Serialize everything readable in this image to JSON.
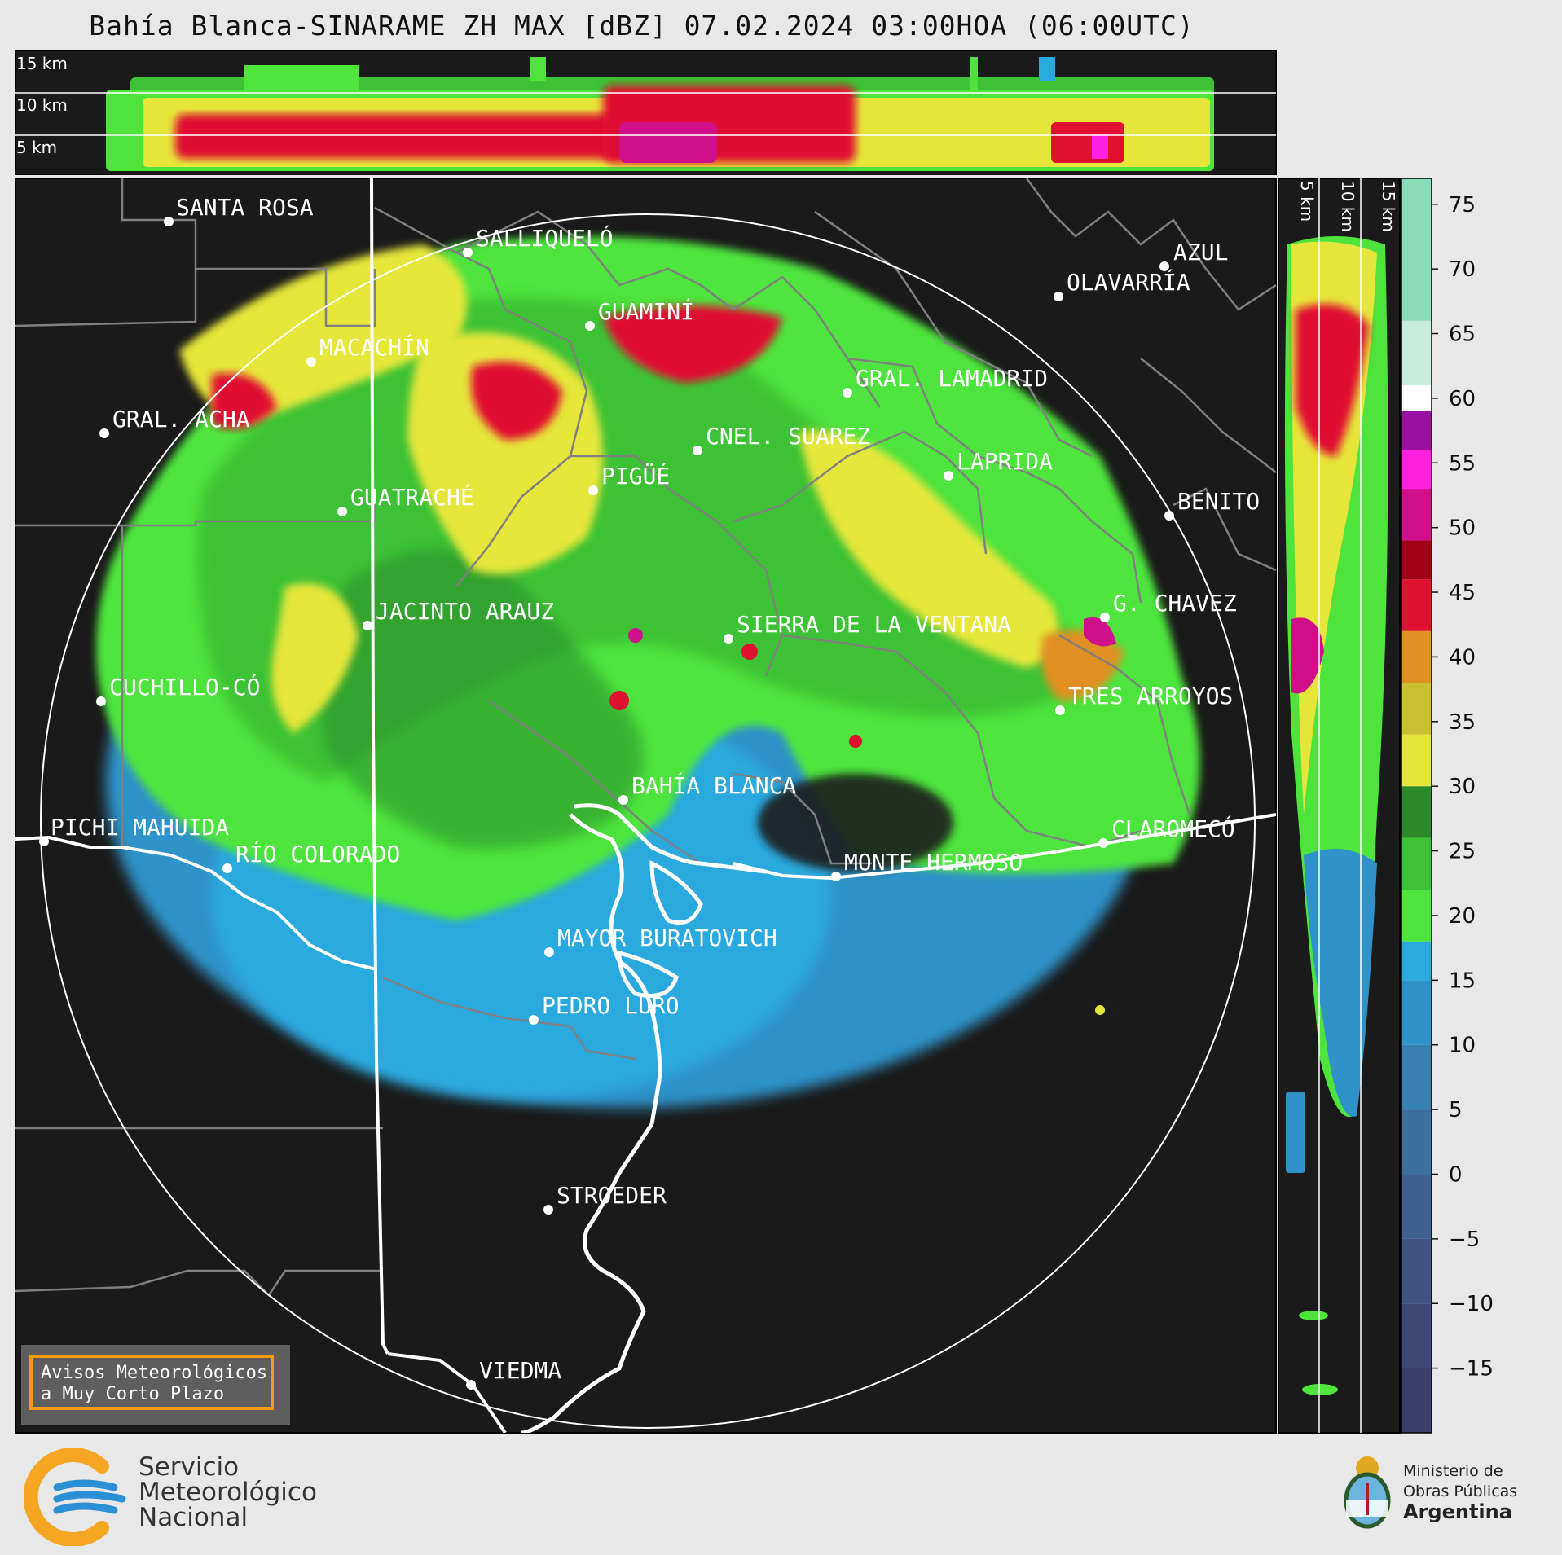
{
  "title": "Bahía Blanca-SINARAME ZH MAX [dBZ] 07.02.2024 03:00HOA (06:00UTC)",
  "top_panel": {
    "height_labels": [
      "15 km",
      "10 km",
      "5 km"
    ]
  },
  "side_panel": {
    "height_labels": [
      "5 km",
      "10 km",
      "15 km"
    ]
  },
  "cities": [
    {
      "name": "SANTA ROSA"
    },
    {
      "name": "SALLIQUELÓ"
    },
    {
      "name": "AZUL"
    },
    {
      "name": "OLAVARRÍA"
    },
    {
      "name": "GUAMINÍ"
    },
    {
      "name": "MACACHÍN"
    },
    {
      "name": "GRAL. LAMADRID"
    },
    {
      "name": "GRAL. ACHA"
    },
    {
      "name": "CNEL. SUAREZ"
    },
    {
      "name": "LAPRIDA"
    },
    {
      "name": "PIGÜÉ"
    },
    {
      "name": "GUATRACHÉ"
    },
    {
      "name": "BENITO"
    },
    {
      "name": "JACINTO ARAUZ"
    },
    {
      "name": "SIERRA DE LA VENTANA"
    },
    {
      "name": "G. CHAVEZ"
    },
    {
      "name": "CUCHILLO-CÓ"
    },
    {
      "name": "TRES ARROYOS"
    },
    {
      "name": "BAHÍA BLANCA"
    },
    {
      "name": "PICHI MAHUIDA"
    },
    {
      "name": "CLAROMECÓ"
    },
    {
      "name": "RÍO COLORADO"
    },
    {
      "name": "MONTE HERMOSO"
    },
    {
      "name": "MAYOR BURATOVICH"
    },
    {
      "name": "PEDRO LURO"
    },
    {
      "name": "STROEDER"
    },
    {
      "name": "VIEDMA"
    }
  ],
  "colorbar": {
    "unit": "dBZ",
    "ticks": [
      "75",
      "70",
      "65",
      "60",
      "55",
      "50",
      "45",
      "40",
      "35",
      "30",
      "25",
      "20",
      "15",
      "10",
      "5",
      "0",
      "−5",
      "−10",
      "−15"
    ],
    "bands": [
      {
        "from": -20,
        "to": -15,
        "color": "#3b3f6b"
      },
      {
        "from": -15,
        "to": -10,
        "color": "#3e4877"
      },
      {
        "from": -10,
        "to": -5,
        "color": "#405483"
      },
      {
        "from": -5,
        "to": 0,
        "color": "#3f6190"
      },
      {
        "from": 0,
        "to": 5,
        "color": "#3a6f9e"
      },
      {
        "from": 5,
        "to": 10,
        "color": "#3680b2"
      },
      {
        "from": 10,
        "to": 15,
        "color": "#2f93c9"
      },
      {
        "from": 15,
        "to": 18,
        "color": "#29a9de"
      },
      {
        "from": 18,
        "to": 22,
        "color": "#4ee43c"
      },
      {
        "from": 22,
        "to": 26,
        "color": "#3cc234"
      },
      {
        "from": 26,
        "to": 30,
        "color": "#2a8a2a"
      },
      {
        "from": 30,
        "to": 34,
        "color": "#e6e63a"
      },
      {
        "from": 34,
        "to": 38,
        "color": "#c8c030"
      },
      {
        "from": 38,
        "to": 42,
        "color": "#e09020"
      },
      {
        "from": 42,
        "to": 46,
        "color": "#e01030"
      },
      {
        "from": 46,
        "to": 49,
        "color": "#a00018"
      },
      {
        "from": 49,
        "to": 53,
        "color": "#d0108a"
      },
      {
        "from": 53,
        "to": 56,
        "color": "#ff20e0"
      },
      {
        "from": 56,
        "to": 59,
        "color": "#9a10a0"
      },
      {
        "from": 59,
        "to": 61,
        "color": "#ffffff"
      },
      {
        "from": 61,
        "to": 66,
        "color": "#c8ecdc"
      },
      {
        "from": 66,
        "to": 77,
        "color": "#88dcb8"
      }
    ]
  },
  "notice": {
    "line1": "Avisos Meteorológicos",
    "line2": "a Muy Corto Plazo"
  },
  "logo_smn": {
    "line1": "Servicio",
    "line2": "Meteorológico",
    "line3": "Nacional"
  },
  "logo_mop": {
    "line1": "Ministerio de",
    "line2": "Obras Públicas",
    "line3": "Argentina"
  },
  "colors": {
    "background": "#e8e8e8",
    "map_bg": "#1a1a1a",
    "frame_accent": "#f39c12"
  }
}
